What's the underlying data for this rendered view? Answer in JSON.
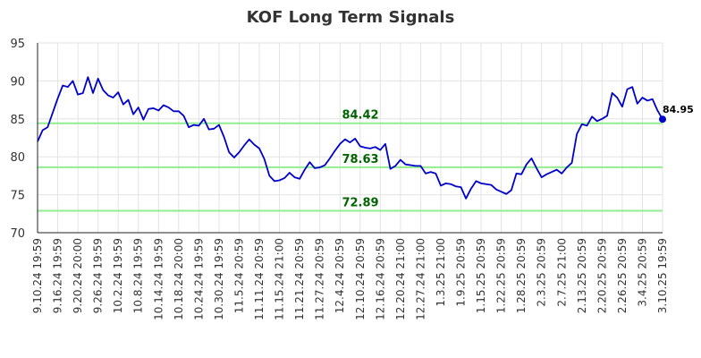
{
  "chart_data": {
    "type": "line",
    "title": "KOF Long Term Signals",
    "xlabel": "",
    "ylabel": "",
    "ylim": [
      70,
      95
    ],
    "yticks": [
      "70",
      "75",
      "80",
      "85",
      "90",
      "95"
    ],
    "grid": true,
    "x_tick_labels": [
      "9.10.24 19:59",
      "9.16.24 19:59",
      "9.20.24 20:00",
      "9.26.24 19:59",
      "10.2.24 19:59",
      "10.8.24 19:59",
      "10.14.24 19:59",
      "10.18.24 20:00",
      "10.24.24 19:59",
      "10.30.24 19:59",
      "11.5.24 20:59",
      "11.11.24 20:59",
      "11.15.24 21:00",
      "11.21.24 20:59",
      "11.27.24 20:59",
      "12.4.24 20:59",
      "12.10.24 20:59",
      "12.16.24 20:59",
      "12.20.24 21:00",
      "12.27.24 21:00",
      "1.3.25 21:00",
      "1.9.25 20:59",
      "1.15.25 20:59",
      "1.22.25 20:59",
      "1.28.25 20:59",
      "2.3.25 20:59",
      "2.7.25 21:00",
      "2.13.25 20:59",
      "2.20.25 20:59",
      "2.26.25 20:59",
      "3.4.25 20:59",
      "3.10.25 19:59"
    ],
    "series": [
      {
        "color": "#0000cc",
        "values": [
          82.0,
          83.5,
          83.9,
          85.8,
          87.7,
          89.4,
          89.2,
          90.0,
          88.2,
          88.4,
          90.5,
          88.4,
          90.3,
          88.8,
          88.1,
          87.8,
          88.5,
          86.9,
          87.5,
          85.6,
          86.5,
          84.9,
          86.3,
          86.4,
          86.1,
          86.8,
          86.5,
          86.0,
          86.0,
          85.4,
          83.9,
          84.2,
          84.1,
          85.0,
          83.6,
          83.7,
          84.2,
          82.6,
          80.6,
          79.9,
          80.6,
          81.5,
          82.3,
          81.6,
          81.1,
          79.7,
          77.5,
          76.8,
          76.9,
          77.2,
          77.9,
          77.3,
          77.1,
          78.3,
          79.3,
          78.5,
          78.6,
          78.9,
          79.8,
          80.8,
          81.7,
          82.3,
          81.9,
          82.4,
          81.4,
          81.2,
          81.1,
          81.3,
          80.9,
          81.7,
          78.4,
          78.8,
          79.6,
          79.0,
          78.9,
          78.8,
          78.8,
          77.8,
          78.0,
          77.8,
          76.2,
          76.5,
          76.4,
          76.1,
          76.0,
          74.5,
          75.8,
          76.8,
          76.5,
          76.4,
          76.3,
          75.7,
          75.4,
          75.1,
          75.6,
          77.8,
          77.7,
          79.0,
          79.8,
          78.5,
          77.3,
          77.7,
          78.0,
          78.3,
          77.8,
          78.6,
          79.2,
          83.0,
          84.3,
          84.1,
          85.3,
          84.7,
          85.0,
          85.4,
          88.4,
          87.8,
          86.6,
          88.9,
          89.2,
          87.0,
          87.8,
          87.4,
          87.6,
          86.1,
          84.95
        ]
      }
    ],
    "hlines": [
      {
        "value": 84.42,
        "label": "84.42",
        "color": "#90ee90"
      },
      {
        "value": 78.63,
        "label": "78.63",
        "color": "#90ee90"
      },
      {
        "value": 72.89,
        "label": "72.89",
        "color": "#90ee90"
      }
    ],
    "last_value_label": "84.95"
  }
}
